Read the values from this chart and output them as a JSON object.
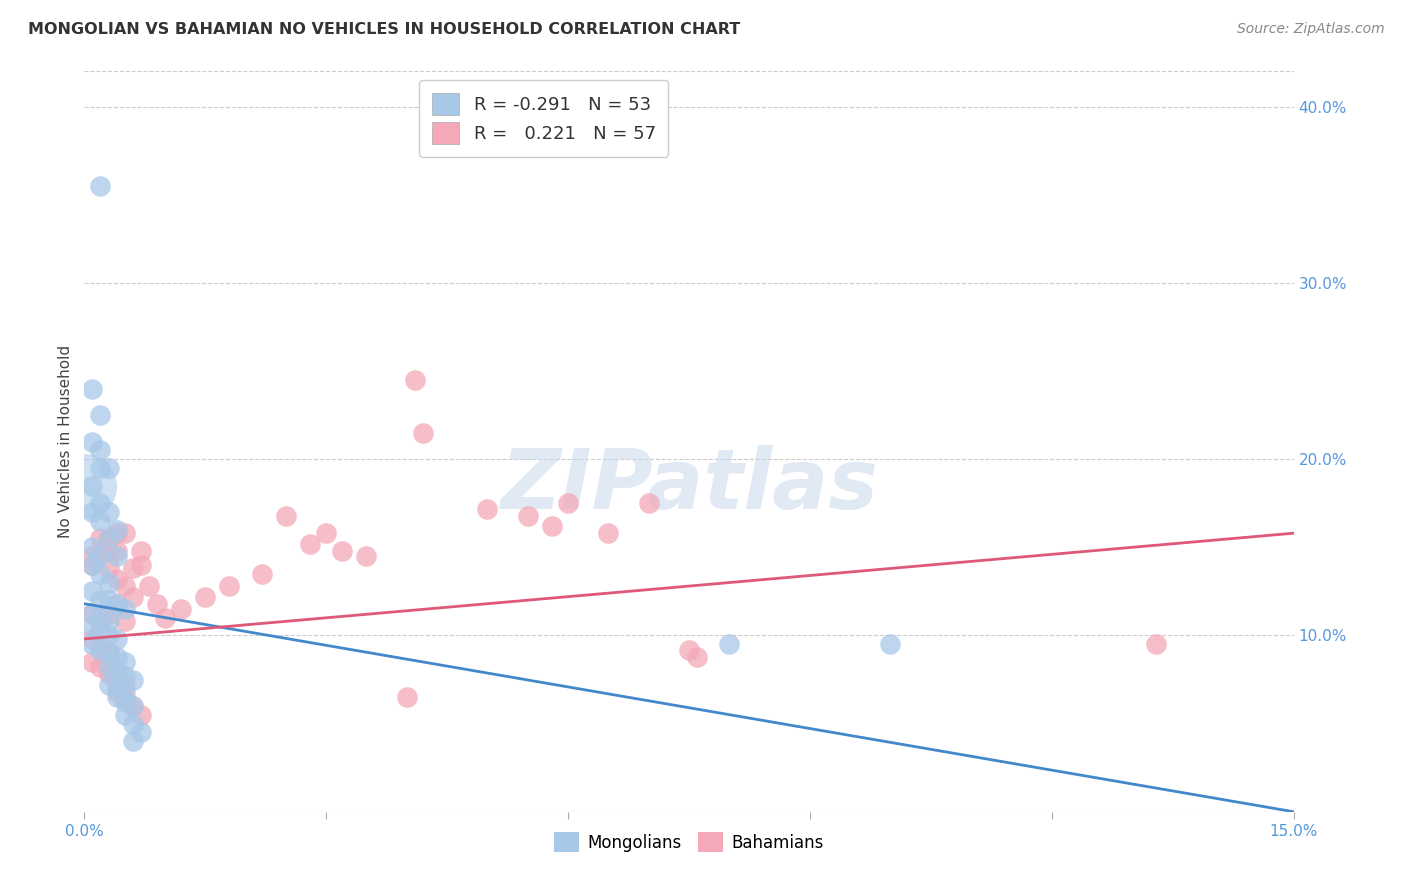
{
  "title": "MONGOLIAN VS BAHAMIAN NO VEHICLES IN HOUSEHOLD CORRELATION CHART",
  "source": "Source: ZipAtlas.com",
  "ylabel": "No Vehicles in Household",
  "x_min": 0.0,
  "x_max": 0.15,
  "y_min": 0.0,
  "y_max": 0.42,
  "y_ticks": [
    0.1,
    0.2,
    0.3,
    0.4
  ],
  "y_tick_labels": [
    "10.0%",
    "20.0%",
    "30.0%",
    "40.0%"
  ],
  "x_ticks": [
    0.0,
    0.03,
    0.06,
    0.09,
    0.12,
    0.15
  ],
  "x_tick_labels": [
    "0.0%",
    "",
    "",
    "",
    "",
    "15.0%"
  ],
  "mongolian_color": "#a8c8e8",
  "bahamian_color": "#f4a8b8",
  "mongolian_line_color": "#4488cc",
  "bahamian_line_color": "#e05878",
  "legend_R_mongolian": "-0.291",
  "legend_N_mongolian": "53",
  "legend_R_bahamian": "0.221",
  "legend_N_bahamian": "57",
  "background_color": "#ffffff",
  "grid_color": "#cccccc",
  "right_tick_color": "#5599dd",
  "mongolian_line": {
    "x0": 0.0,
    "y0": 0.118,
    "x1": 0.15,
    "y1": 0.0
  },
  "bahamian_line": {
    "x0": 0.0,
    "y0": 0.098,
    "x1": 0.15,
    "y1": 0.158
  },
  "mongolian_large_bubble": [
    0.0,
    0.185
  ],
  "mongolian_scatter": [
    [
      0.002,
      0.355
    ],
    [
      0.001,
      0.24
    ],
    [
      0.002,
      0.225
    ],
    [
      0.001,
      0.21
    ],
    [
      0.002,
      0.205
    ],
    [
      0.002,
      0.195
    ],
    [
      0.003,
      0.195
    ],
    [
      0.001,
      0.185
    ],
    [
      0.002,
      0.175
    ],
    [
      0.001,
      0.17
    ],
    [
      0.003,
      0.17
    ],
    [
      0.002,
      0.165
    ],
    [
      0.004,
      0.16
    ],
    [
      0.003,
      0.155
    ],
    [
      0.001,
      0.15
    ],
    [
      0.002,
      0.145
    ],
    [
      0.004,
      0.145
    ],
    [
      0.001,
      0.14
    ],
    [
      0.002,
      0.135
    ],
    [
      0.003,
      0.13
    ],
    [
      0.001,
      0.125
    ],
    [
      0.002,
      0.12
    ],
    [
      0.003,
      0.12
    ],
    [
      0.004,
      0.118
    ],
    [
      0.005,
      0.115
    ],
    [
      0.001,
      0.113
    ],
    [
      0.002,
      0.11
    ],
    [
      0.003,
      0.108
    ],
    [
      0.001,
      0.105
    ],
    [
      0.002,
      0.103
    ],
    [
      0.003,
      0.1
    ],
    [
      0.004,
      0.098
    ],
    [
      0.001,
      0.095
    ],
    [
      0.002,
      0.092
    ],
    [
      0.003,
      0.09
    ],
    [
      0.004,
      0.088
    ],
    [
      0.005,
      0.085
    ],
    [
      0.003,
      0.082
    ],
    [
      0.004,
      0.08
    ],
    [
      0.005,
      0.077
    ],
    [
      0.006,
      0.075
    ],
    [
      0.003,
      0.072
    ],
    [
      0.004,
      0.07
    ],
    [
      0.005,
      0.068
    ],
    [
      0.004,
      0.065
    ],
    [
      0.005,
      0.062
    ],
    [
      0.006,
      0.06
    ],
    [
      0.005,
      0.055
    ],
    [
      0.006,
      0.05
    ],
    [
      0.007,
      0.045
    ],
    [
      0.006,
      0.04
    ],
    [
      0.08,
      0.095
    ],
    [
      0.1,
      0.095
    ]
  ],
  "bahamian_scatter": [
    [
      0.001,
      0.145
    ],
    [
      0.002,
      0.155
    ],
    [
      0.001,
      0.14
    ],
    [
      0.002,
      0.148
    ],
    [
      0.003,
      0.155
    ],
    [
      0.003,
      0.148
    ],
    [
      0.004,
      0.158
    ],
    [
      0.003,
      0.138
    ],
    [
      0.004,
      0.148
    ],
    [
      0.005,
      0.158
    ],
    [
      0.004,
      0.132
    ],
    [
      0.005,
      0.128
    ],
    [
      0.006,
      0.122
    ],
    [
      0.007,
      0.14
    ],
    [
      0.006,
      0.138
    ],
    [
      0.007,
      0.148
    ],
    [
      0.008,
      0.128
    ],
    [
      0.009,
      0.118
    ],
    [
      0.001,
      0.112
    ],
    [
      0.002,
      0.108
    ],
    [
      0.003,
      0.112
    ],
    [
      0.004,
      0.118
    ],
    [
      0.005,
      0.108
    ],
    [
      0.001,
      0.098
    ],
    [
      0.002,
      0.094
    ],
    [
      0.003,
      0.09
    ],
    [
      0.001,
      0.085
    ],
    [
      0.002,
      0.082
    ],
    [
      0.003,
      0.078
    ],
    [
      0.004,
      0.075
    ],
    [
      0.005,
      0.072
    ],
    [
      0.004,
      0.068
    ],
    [
      0.005,
      0.064
    ],
    [
      0.006,
      0.06
    ],
    [
      0.007,
      0.055
    ],
    [
      0.041,
      0.245
    ],
    [
      0.042,
      0.215
    ],
    [
      0.025,
      0.168
    ],
    [
      0.03,
      0.158
    ],
    [
      0.028,
      0.152
    ],
    [
      0.032,
      0.148
    ],
    [
      0.035,
      0.145
    ],
    [
      0.022,
      0.135
    ],
    [
      0.018,
      0.128
    ],
    [
      0.015,
      0.122
    ],
    [
      0.012,
      0.115
    ],
    [
      0.01,
      0.11
    ],
    [
      0.05,
      0.172
    ],
    [
      0.055,
      0.168
    ],
    [
      0.058,
      0.162
    ],
    [
      0.06,
      0.175
    ],
    [
      0.065,
      0.158
    ],
    [
      0.07,
      0.175
    ],
    [
      0.075,
      0.092
    ],
    [
      0.076,
      0.088
    ],
    [
      0.133,
      0.095
    ],
    [
      0.04,
      0.065
    ]
  ]
}
